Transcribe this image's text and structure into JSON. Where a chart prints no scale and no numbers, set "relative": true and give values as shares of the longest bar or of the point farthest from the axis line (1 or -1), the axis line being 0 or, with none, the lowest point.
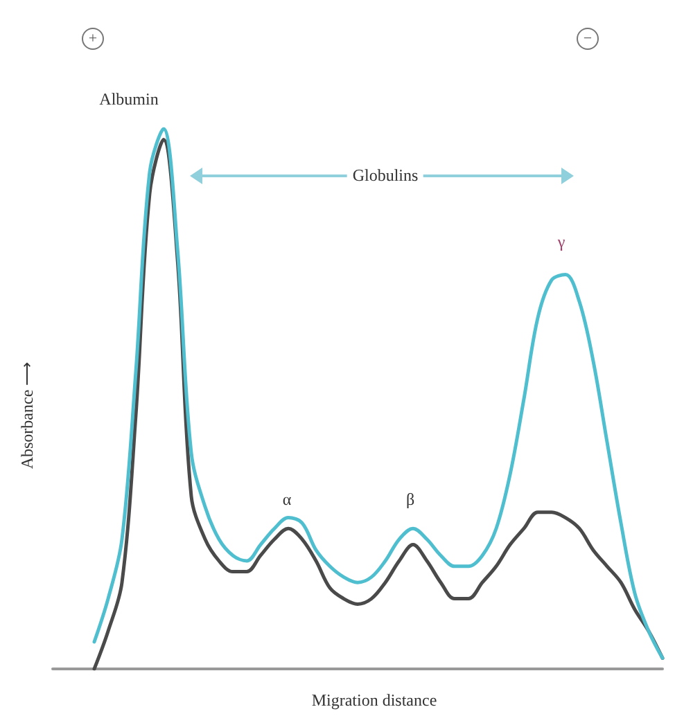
{
  "chart_data": {
    "type": "line",
    "relative": true,
    "xlabel": "Migration distance",
    "ylabel": "Absorbance ⟶",
    "categories": [
      null,
      null,
      null,
      null,
      null,
      null,
      null,
      null,
      null,
      null,
      null,
      null,
      null,
      null,
      null,
      null,
      null,
      null,
      null,
      null,
      null,
      null,
      null,
      null,
      null,
      null,
      null,
      null,
      null,
      null,
      null,
      null,
      null,
      null,
      null,
      null,
      null,
      null,
      null,
      null,
      null,
      null,
      null,
      null,
      null
    ],
    "series": [
      {
        "color": "#4a4a4a",
        "values": [
          null,
          null,
          null,
          0,
          0.07,
          0.16,
          0.47,
          0.88,
          0.98,
          0.76,
          0.32,
          0.24,
          0.2,
          0.18,
          0.18,
          0.21,
          0.24,
          0.26,
          0.24,
          0.2,
          0.15,
          0.13,
          0.12,
          0.13,
          0.16,
          0.2,
          0.23,
          0.2,
          0.16,
          0.13,
          0.13,
          0.16,
          0.19,
          0.23,
          0.26,
          0.29,
          0.29,
          0.28,
          0.26,
          0.22,
          0.19,
          0.16,
          0.11,
          0.07,
          0.02
        ]
      },
      {
        "color": "#4fbfd0",
        "values": [
          null,
          null,
          null,
          0.05,
          0.13,
          0.24,
          0.55,
          0.92,
          1,
          0.78,
          0.4,
          0.3,
          0.24,
          0.21,
          0.2,
          0.23,
          0.26,
          0.28,
          0.27,
          0.22,
          0.19,
          0.17,
          0.16,
          0.17,
          0.2,
          0.24,
          0.26,
          0.24,
          0.21,
          0.19,
          0.19,
          0.21,
          0.26,
          0.36,
          0.5,
          0.65,
          0.72,
          0.73,
          0.68,
          0.57,
          0.42,
          0.27,
          0.14,
          0.07,
          0.02
        ]
      }
    ],
    "annotations": [
      "+",
      "−",
      "Albumin",
      "Globulins",
      "α",
      "β",
      "γ"
    ],
    "marker": "none",
    "grid": false
  }
}
